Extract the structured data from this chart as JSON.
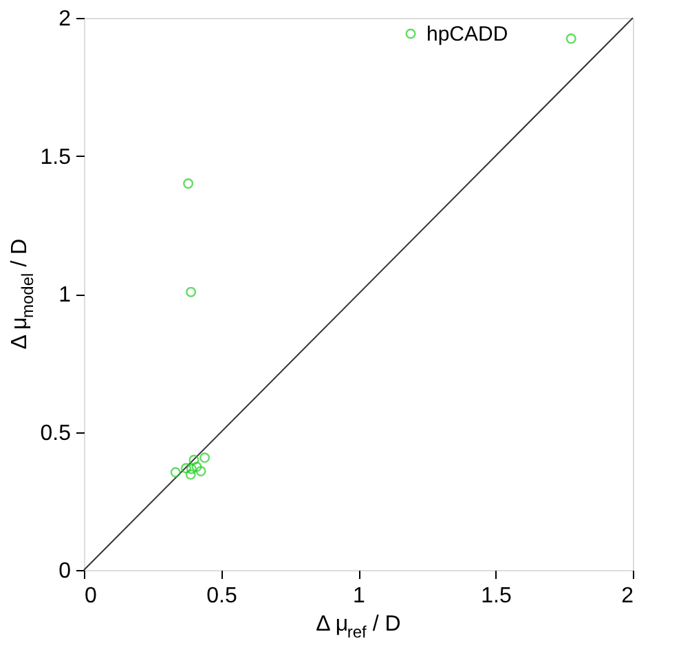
{
  "chart_data": {
    "type": "scatter",
    "xlabel": "Δ μ$_{ref}$ / D",
    "ylabel": "Δ μ$_{model}$ / D",
    "xlim": [
      0,
      2
    ],
    "ylim": [
      0,
      2
    ],
    "xticks": [
      0,
      0.5,
      1,
      1.5,
      2
    ],
    "yticks": [
      0,
      0.5,
      1,
      1.5,
      2
    ],
    "grid": false,
    "legend": "top right",
    "series": [
      {
        "name": "hpCADD",
        "color": "#22cc22",
        "marker": "circle",
        "x": [
          1.775,
          0.38,
          0.39,
          0.334,
          0.372,
          0.401,
          0.44,
          0.392,
          0.389,
          0.426,
          0.411
        ],
        "values": [
          1.925,
          1.4,
          1.007,
          0.354,
          0.369,
          0.399,
          0.407,
          0.366,
          0.346,
          0.358,
          0.374
        ]
      },
      {
        "color": "#333333",
        "type": "line",
        "x": [
          0,
          2
        ],
        "values": [
          0,
          2
        ]
      }
    ]
  }
}
